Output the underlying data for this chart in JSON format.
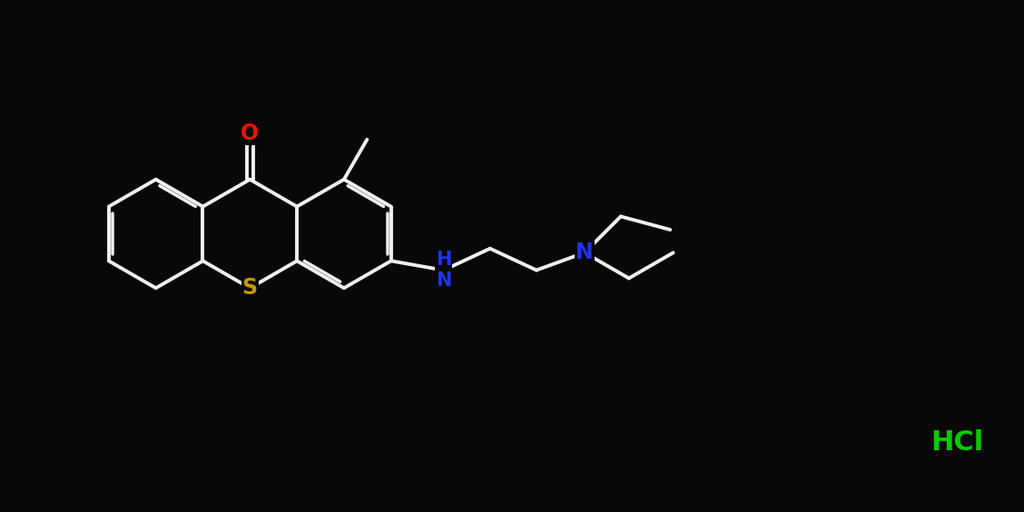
{
  "bg_color": "#080808",
  "bond_color": "#f0f0f0",
  "bond_width": 2.8,
  "S_color": "#c8960a",
  "O_color": "#ee1100",
  "N_color": "#2233ee",
  "HCl_color": "#00cc00",
  "figsize": [
    11.28,
    5.64
  ],
  "xlim": [
    -1.0,
    22.0
  ],
  "ylim": [
    0.5,
    10.5
  ]
}
